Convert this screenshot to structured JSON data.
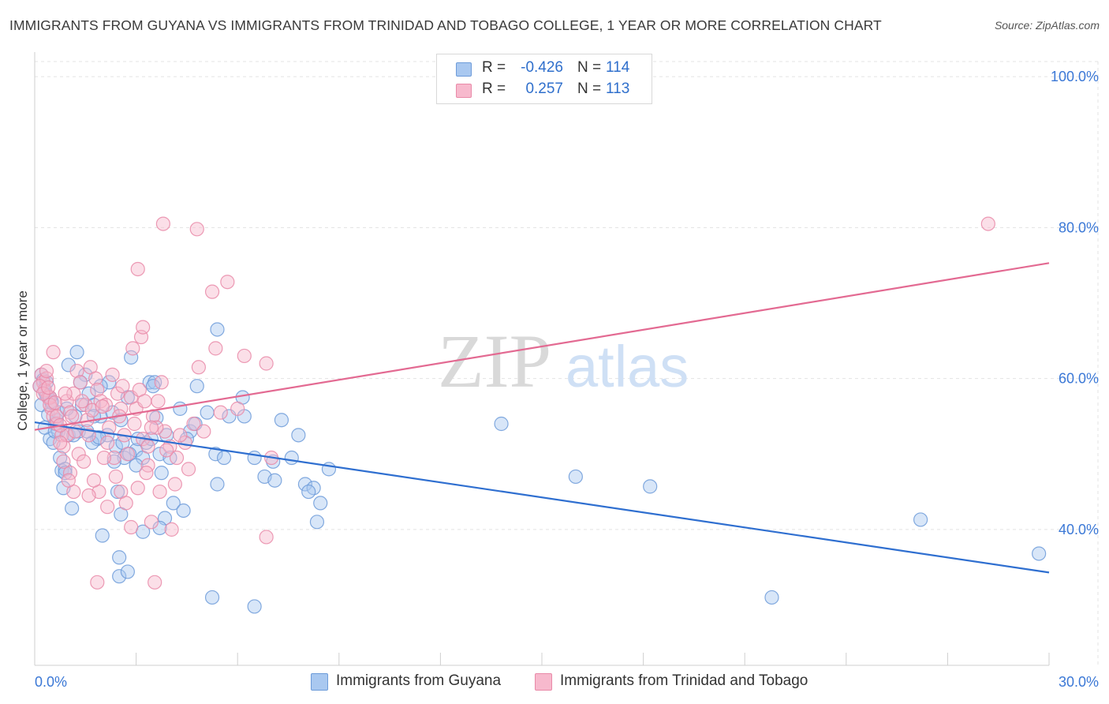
{
  "title": "IMMIGRANTS FROM GUYANA VS IMMIGRANTS FROM TRINIDAD AND TOBAGO COLLEGE, 1 YEAR OR MORE CORRELATION CHART",
  "source": "Source: ZipAtlas.com",
  "watermark": {
    "zip": "ZIP",
    "atlas": "atlas"
  },
  "legend": {
    "rows": [
      {
        "r_label": "R =",
        "r_value": "-0.426",
        "n_label": "N =",
        "n_value": "114",
        "fill": "#a9c8f0",
        "stroke": "#6d9bd9"
      },
      {
        "r_label": "R =",
        "r_value": "0.257",
        "n_label": "N =",
        "n_value": "113",
        "fill": "#f7b9cd",
        "stroke": "#e98aa8"
      }
    ]
  },
  "bottom_legend": [
    {
      "label": "Immigrants from Guyana",
      "fill": "#a9c8f0",
      "stroke": "#6d9bd9"
    },
    {
      "label": "Immigrants from Trinidad and Tobago",
      "fill": "#f7b9cd",
      "stroke": "#e98aa8"
    }
  ],
  "chart_data": {
    "type": "scatter",
    "title": "IMMIGRANTS FROM GUYANA VS IMMIGRANTS FROM TRINIDAD AND TOBAGO COLLEGE, 1 YEAR OR MORE CORRELATION CHART",
    "xlabel": "",
    "ylabel": "College, 1 year or more",
    "xlim": [
      0,
      30
    ],
    "ylim": [
      22,
      102
    ],
    "x_tick_labels": [
      "0.0%",
      "30.0%"
    ],
    "y_ticks": [
      40,
      60,
      80,
      100
    ],
    "y_tick_labels": [
      "40.0%",
      "60.0%",
      "80.0%",
      "100.0%"
    ],
    "grid": true,
    "legend_position": "top-center",
    "series": [
      {
        "name": "Immigrants from Guyana",
        "color": "#6d9bd9",
        "fill": "#a9c8f0",
        "trend_color": "#2f6fd0",
        "trend": {
          "x": [
            0,
            30
          ],
          "y": [
            54.2,
            34.3
          ]
        },
        "points": [
          [
            0.2,
            60.5
          ],
          [
            0.25,
            59.8
          ],
          [
            0.3,
            58.3
          ],
          [
            0.35,
            57.8
          ],
          [
            0.2,
            56.5
          ],
          [
            0.4,
            55.2
          ],
          [
            0.5,
            57.0
          ],
          [
            0.6,
            54.0
          ],
          [
            0.45,
            52.0
          ],
          [
            0.55,
            51.5
          ],
          [
            0.7,
            53.0
          ],
          [
            0.75,
            49.5
          ],
          [
            0.8,
            47.8
          ],
          [
            0.9,
            48.0
          ],
          [
            0.85,
            45.5
          ],
          [
            1.1,
            42.8
          ],
          [
            1.0,
            52.5
          ],
          [
            1.2,
            55.0
          ],
          [
            1.3,
            53.0
          ],
          [
            1.4,
            56.5
          ],
          [
            1.5,
            60.5
          ],
          [
            1.25,
            63.5
          ],
          [
            1.0,
            61.8
          ],
          [
            1.6,
            58.0
          ],
          [
            1.75,
            56.5
          ],
          [
            1.85,
            52.0
          ],
          [
            1.95,
            55.0
          ],
          [
            2.15,
            52.5
          ],
          [
            2.2,
            59.5
          ],
          [
            2.4,
            51.0
          ],
          [
            2.45,
            45.0
          ],
          [
            2.55,
            42.0
          ],
          [
            2.65,
            49.5
          ],
          [
            2.75,
            57.5
          ],
          [
            2.85,
            62.8
          ],
          [
            3.0,
            50.5
          ],
          [
            3.2,
            49.5
          ],
          [
            3.3,
            51.5
          ],
          [
            3.4,
            59.5
          ],
          [
            3.55,
            59.5
          ],
          [
            3.7,
            50.0
          ],
          [
            3.75,
            47.5
          ],
          [
            3.85,
            41.5
          ],
          [
            4.0,
            49.5
          ],
          [
            4.3,
            56.0
          ],
          [
            4.6,
            53.0
          ],
          [
            4.8,
            59.0
          ],
          [
            5.1,
            55.5
          ],
          [
            5.35,
            50.0
          ],
          [
            5.6,
            49.5
          ],
          [
            5.4,
            46.0
          ],
          [
            5.75,
            55.0
          ],
          [
            6.15,
            57.5
          ],
          [
            6.5,
            49.5
          ],
          [
            6.8,
            47.0
          ],
          [
            7.1,
            46.5
          ],
          [
            7.3,
            54.5
          ],
          [
            7.6,
            49.5
          ],
          [
            8.0,
            46.0
          ],
          [
            8.25,
            45.5
          ],
          [
            8.45,
            43.5
          ],
          [
            8.35,
            41.0
          ],
          [
            8.7,
            48.0
          ],
          [
            13.8,
            54.0
          ],
          [
            16.0,
            47.0
          ],
          [
            18.2,
            45.7
          ],
          [
            26.2,
            41.3
          ],
          [
            29.7,
            36.8
          ],
          [
            21.8,
            31.0
          ],
          [
            5.25,
            31.0
          ],
          [
            6.5,
            29.8
          ],
          [
            2.0,
            39.2
          ],
          [
            2.5,
            36.3
          ],
          [
            3.2,
            39.7
          ],
          [
            2.5,
            33.8
          ],
          [
            2.75,
            34.4
          ],
          [
            3.7,
            40.2
          ],
          [
            0.3,
            53.5
          ],
          [
            0.6,
            53.0
          ],
          [
            0.65,
            54.5
          ],
          [
            0.9,
            47.5
          ],
          [
            1.7,
            51.5
          ],
          [
            1.9,
            52.2
          ],
          [
            2.3,
            55.5
          ],
          [
            2.55,
            54.5
          ],
          [
            3.6,
            54.8
          ],
          [
            4.1,
            43.5
          ],
          [
            4.4,
            42.5
          ],
          [
            1.95,
            59.0
          ],
          [
            3.5,
            59.0
          ],
          [
            5.4,
            66.5
          ],
          [
            1.35,
            59.5
          ],
          [
            2.8,
            50.0
          ],
          [
            3.05,
            52.0
          ],
          [
            3.9,
            52.5
          ],
          [
            0.15,
            59.0
          ],
          [
            0.35,
            59.5
          ],
          [
            0.45,
            57.5
          ],
          [
            0.5,
            56.8
          ],
          [
            0.7,
            55.5
          ],
          [
            0.95,
            56.0
          ],
          [
            1.15,
            52.5
          ],
          [
            1.55,
            53.0
          ],
          [
            1.75,
            55.0
          ],
          [
            2.35,
            49.0
          ],
          [
            2.6,
            51.5
          ],
          [
            3.0,
            48.5
          ],
          [
            3.45,
            52.0
          ],
          [
            4.5,
            52.0
          ],
          [
            4.75,
            54.0
          ],
          [
            6.2,
            55.0
          ],
          [
            7.05,
            49.0
          ],
          [
            7.8,
            52.5
          ],
          [
            8.1,
            45.0
          ]
        ]
      },
      {
        "name": "Immigrants from Trinidad and Tobago",
        "color": "#e98aa8",
        "fill": "#f7b9cd",
        "trend_color": "#e36a92",
        "trend": {
          "x": [
            0,
            30
          ],
          "y": [
            53.2,
            75.3
          ]
        },
        "points": [
          [
            0.2,
            60.5
          ],
          [
            0.25,
            59.5
          ],
          [
            0.3,
            58.5
          ],
          [
            0.4,
            57.5
          ],
          [
            0.5,
            56.0
          ],
          [
            0.55,
            55.0
          ],
          [
            0.65,
            54.0
          ],
          [
            0.8,
            52.5
          ],
          [
            0.85,
            51.0
          ],
          [
            0.95,
            57.0
          ],
          [
            1.05,
            55.5
          ],
          [
            1.15,
            58.0
          ],
          [
            1.25,
            61.0
          ],
          [
            1.35,
            59.5
          ],
          [
            1.5,
            56.5
          ],
          [
            1.55,
            54.5
          ],
          [
            1.65,
            61.5
          ],
          [
            1.8,
            60.0
          ],
          [
            1.85,
            58.5
          ],
          [
            1.95,
            57.0
          ],
          [
            2.1,
            56.5
          ],
          [
            2.2,
            53.5
          ],
          [
            2.35,
            49.5
          ],
          [
            2.45,
            58.0
          ],
          [
            2.55,
            56.0
          ],
          [
            2.65,
            52.5
          ],
          [
            2.85,
            57.5
          ],
          [
            3.0,
            56.0
          ],
          [
            3.1,
            58.5
          ],
          [
            3.2,
            52.0
          ],
          [
            3.35,
            51.0
          ],
          [
            3.5,
            55.0
          ],
          [
            3.75,
            59.5
          ],
          [
            3.85,
            53.0
          ],
          [
            4.0,
            51.0
          ],
          [
            4.2,
            49.5
          ],
          [
            4.45,
            51.5
          ],
          [
            4.7,
            54.0
          ],
          [
            4.85,
            61.5
          ],
          [
            5.35,
            64.0
          ],
          [
            2.9,
            64.0
          ],
          [
            3.15,
            65.5
          ],
          [
            3.2,
            66.8
          ],
          [
            3.05,
            74.5
          ],
          [
            3.8,
            80.5
          ],
          [
            4.8,
            79.8
          ],
          [
            5.25,
            71.5
          ],
          [
            5.7,
            72.8
          ],
          [
            6.2,
            63.0
          ],
          [
            6.85,
            62.0
          ],
          [
            7.0,
            49.5
          ],
          [
            6.85,
            39.0
          ],
          [
            4.05,
            40.0
          ],
          [
            3.45,
            41.0
          ],
          [
            2.85,
            40.3
          ],
          [
            2.15,
            43.0
          ],
          [
            1.9,
            45.0
          ],
          [
            1.75,
            46.5
          ],
          [
            1.15,
            45.0
          ],
          [
            1.05,
            47.5
          ],
          [
            0.95,
            52.5
          ],
          [
            0.75,
            51.5
          ],
          [
            0.65,
            55.0
          ],
          [
            0.45,
            57.5
          ],
          [
            0.35,
            60.0
          ],
          [
            0.55,
            63.5
          ],
          [
            0.35,
            61.0
          ],
          [
            1.85,
            33.0
          ],
          [
            3.55,
            33.0
          ],
          [
            2.55,
            45.0
          ],
          [
            3.35,
            48.5
          ],
          [
            4.15,
            46.0
          ],
          [
            28.2,
            80.5
          ],
          [
            0.15,
            59.0
          ],
          [
            0.25,
            58.0
          ],
          [
            0.45,
            56.5
          ],
          [
            0.6,
            56.8
          ],
          [
            0.75,
            53.8
          ],
          [
            1.1,
            55.0
          ],
          [
            1.2,
            53.0
          ],
          [
            1.4,
            57.0
          ],
          [
            1.6,
            52.5
          ],
          [
            1.7,
            55.8
          ],
          [
            2.0,
            56.3
          ],
          [
            2.3,
            60.5
          ],
          [
            2.5,
            55.0
          ],
          [
            2.6,
            59.0
          ],
          [
            2.75,
            50.0
          ],
          [
            2.95,
            54.0
          ],
          [
            3.25,
            57.0
          ],
          [
            3.6,
            53.5
          ],
          [
            3.9,
            50.5
          ],
          [
            4.3,
            52.5
          ],
          [
            0.4,
            58.8
          ],
          [
            0.9,
            58.0
          ],
          [
            1.3,
            50.0
          ],
          [
            1.45,
            49.0
          ],
          [
            2.05,
            49.5
          ],
          [
            2.4,
            47.0
          ],
          [
            2.7,
            43.5
          ],
          [
            3.05,
            45.5
          ],
          [
            3.3,
            47.5
          ],
          [
            3.7,
            45.0
          ],
          [
            4.55,
            48.0
          ],
          [
            1.0,
            46.5
          ],
          [
            0.85,
            49.0
          ],
          [
            1.6,
            44.5
          ],
          [
            2.15,
            51.5
          ],
          [
            3.45,
            53.5
          ],
          [
            3.65,
            57.0
          ],
          [
            5.0,
            53.0
          ],
          [
            5.5,
            55.5
          ],
          [
            6.0,
            56.0
          ]
        ]
      }
    ]
  }
}
